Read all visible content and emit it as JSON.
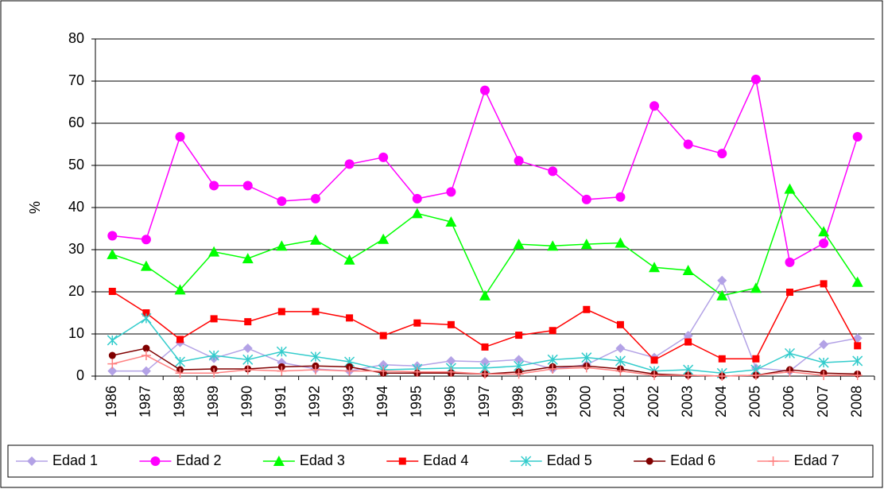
{
  "chart_data": {
    "type": "line",
    "y_label": "%",
    "categories": [
      "1986",
      "1987",
      "1988",
      "1989",
      "1990",
      "1991",
      "1992",
      "1993",
      "1994",
      "1995",
      "1996",
      "1997",
      "1998",
      "1999",
      "2000",
      "2001",
      "2002",
      "2003",
      "2004",
      "2005",
      "2006",
      "2007",
      "2008"
    ],
    "ylim": [
      0,
      80
    ],
    "yticks": [
      0,
      10,
      20,
      30,
      40,
      50,
      60,
      70,
      80
    ],
    "grid": true,
    "legend": "bottom",
    "series": [
      {
        "name": "Edad 1",
        "color": "#b3a2e6",
        "marker": "diamond",
        "values": [
          1.2,
          1.2,
          8.0,
          4.2,
          6.6,
          3.2,
          1.7,
          1.2,
          2.7,
          2.4,
          3.6,
          3.4,
          3.9,
          1.7,
          2.7,
          6.6,
          4.4,
          9.6,
          22.7,
          1.9,
          1.2,
          7.5,
          9.0
        ]
      },
      {
        "name": "Edad 2",
        "color": "#ff00ff",
        "marker": "circle",
        "values": [
          33.3,
          32.4,
          56.8,
          45.2,
          45.2,
          41.5,
          42.1,
          50.3,
          51.9,
          42.1,
          43.7,
          67.8,
          51.1,
          48.6,
          41.9,
          42.5,
          64.1,
          55.0,
          52.8,
          70.4,
          27.0,
          31.5,
          56.8
        ]
      },
      {
        "name": "Edad 3",
        "color": "#00ff00",
        "marker": "triangle",
        "values": [
          28.9,
          26.1,
          20.5,
          29.5,
          27.9,
          30.9,
          32.3,
          27.6,
          32.5,
          38.6,
          36.6,
          19.1,
          31.3,
          30.9,
          31.3,
          31.6,
          25.8,
          25.1,
          19.1,
          20.9,
          44.4,
          34.3,
          22.3
        ]
      },
      {
        "name": "Edad 4",
        "color": "#ff0000",
        "marker": "square",
        "values": [
          20.1,
          15.0,
          8.7,
          13.6,
          12.9,
          15.3,
          15.3,
          13.8,
          9.6,
          12.6,
          12.2,
          6.9,
          9.7,
          10.8,
          15.8,
          12.2,
          3.8,
          8.1,
          4.1,
          4.1,
          19.9,
          21.9,
          7.2
        ]
      },
      {
        "name": "Edad 5",
        "color": "#33cccc",
        "marker": "star",
        "values": [
          8.5,
          13.7,
          3.4,
          4.9,
          3.9,
          5.8,
          4.6,
          3.4,
          1.5,
          1.7,
          1.9,
          1.9,
          2.4,
          3.9,
          4.4,
          3.6,
          1.2,
          1.5,
          0.7,
          1.5,
          5.4,
          3.2,
          3.6
        ]
      },
      {
        "name": "Edad 6",
        "color": "#800000",
        "marker": "dot",
        "values": [
          4.9,
          6.6,
          1.5,
          1.7,
          1.7,
          2.2,
          2.4,
          2.2,
          0.7,
          0.7,
          0.7,
          0.5,
          1.0,
          2.2,
          2.4,
          1.7,
          0.5,
          0.2,
          0.0,
          0.2,
          1.5,
          0.7,
          0.5
        ]
      },
      {
        "name": "Edad 7",
        "color": "#ff8080",
        "marker": "plus",
        "values": [
          2.9,
          4.9,
          0.7,
          0.7,
          1.5,
          1.2,
          1.5,
          1.2,
          1.2,
          1.0,
          1.0,
          0.5,
          0.5,
          1.7,
          2.0,
          1.2,
          0.2,
          0.2,
          0.0,
          0.2,
          1.0,
          0.2,
          0.2
        ]
      }
    ]
  }
}
